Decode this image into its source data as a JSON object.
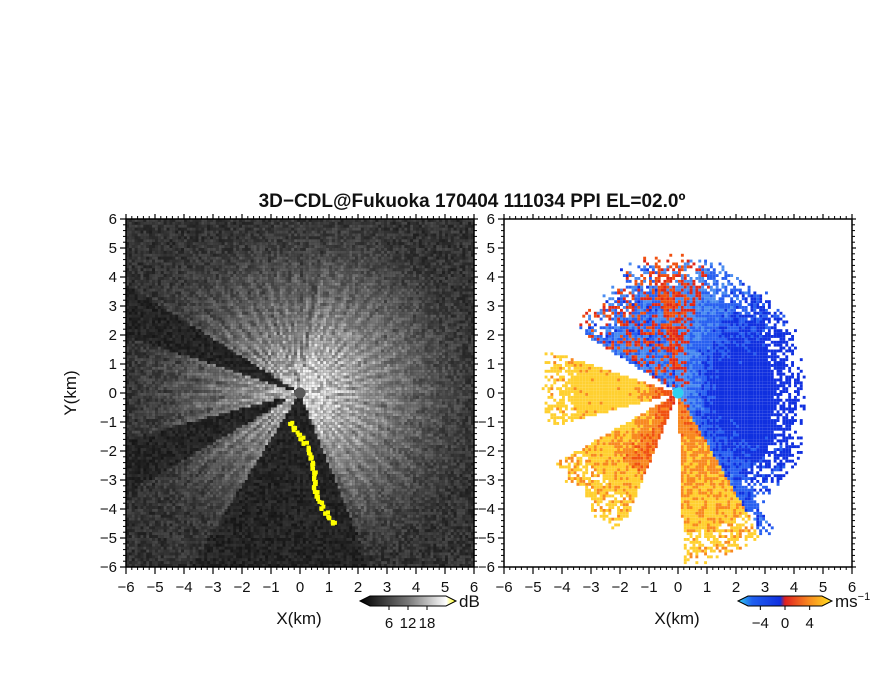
{
  "chart_data": {
    "type": "heatmap",
    "title": "3D−CDL@Fukuoka 170404 111034 PPI EL=02.0º",
    "panels": [
      {
        "name": "reflectivity",
        "xlabel": "X(km)",
        "ylabel": "Y(km)",
        "xlim": [
          -6,
          6
        ],
        "ylim": [
          -6,
          6
        ],
        "xticks": [
          "−6",
          "−5",
          "−4",
          "−3",
          "−2",
          "−1",
          "0",
          "1",
          "2",
          "3",
          "4",
          "5",
          "6"
        ],
        "yticks": [
          "−6",
          "−5",
          "−4",
          "−3",
          "−2",
          "−1",
          "0",
          "1",
          "2",
          "3",
          "4",
          "5",
          "6"
        ],
        "colormap": "grayscale",
        "highlight_color": "#ffff00",
        "colorbar": {
          "unit": "dB",
          "ticks": [
            "6",
            "12",
            "18"
          ],
          "tick_values": [
            6,
            12,
            18
          ],
          "range": [
            0,
            24
          ]
        }
      },
      {
        "name": "doppler-velocity",
        "xlabel": "X(km)",
        "ylabel": "",
        "xlim": [
          -6,
          6
        ],
        "ylim": [
          -6,
          6
        ],
        "xticks": [
          "−6",
          "−5",
          "−4",
          "−3",
          "−2",
          "−1",
          "0",
          "1",
          "2",
          "3",
          "4",
          "5",
          "6"
        ],
        "yticks": [
          "−6",
          "−5",
          "−4",
          "−3",
          "−2",
          "−1",
          "0",
          "1",
          "2",
          "3",
          "4",
          "5",
          "6"
        ],
        "colormap": "diverging blue-red-yellow",
        "colorbar": {
          "unit": "ms",
          "unit_exp": "−1",
          "ticks": [
            "−4",
            "0",
            "4"
          ],
          "tick_values": [
            -4,
            0,
            4
          ],
          "range": [
            -6,
            6
          ]
        }
      }
    ],
    "grid": false,
    "colors": {
      "negative": "#1e50f0",
      "zero": "#e02020",
      "positive": "#ffe020",
      "cyan": "#30d0f0"
    }
  }
}
